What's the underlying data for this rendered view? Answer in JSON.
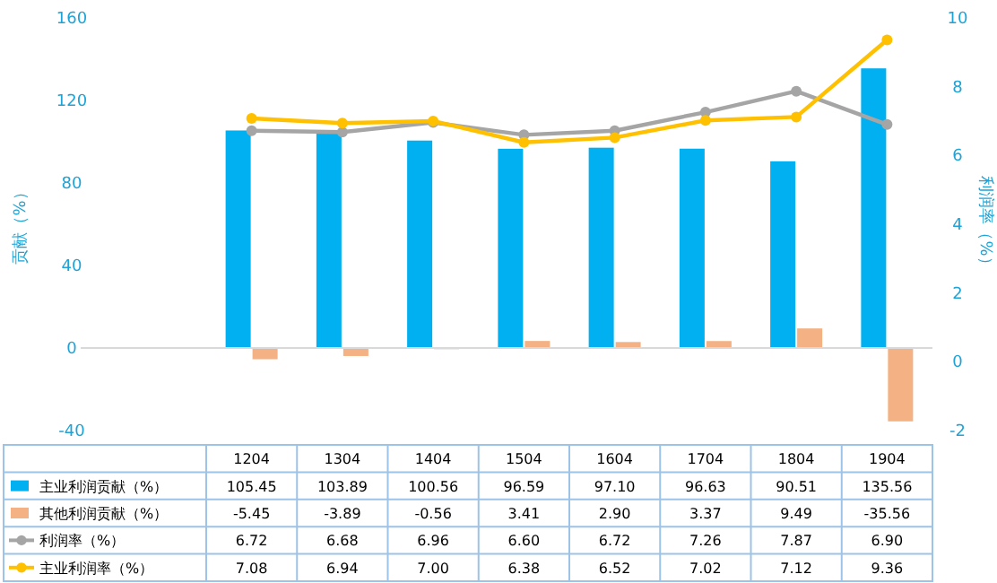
{
  "chart_data": {
    "type": "bar",
    "ylabel": "贡献（%）",
    "y2label": "利润率（%）",
    "categories": [
      "1204",
      "1304",
      "1404",
      "1504",
      "1604",
      "1704",
      "1804",
      "1904"
    ],
    "series": [
      {
        "name": "主业利润贡献（%）",
        "color": "#00b0f0",
        "values": [
          105.45,
          103.89,
          100.56,
          96.59,
          97.1,
          96.63,
          90.51,
          135.56
        ],
        "value_labels": [
          "105.45",
          "103.89",
          "100.56",
          "96.59",
          "97.10",
          "96.63",
          "90.51",
          "135.56"
        ]
      },
      {
        "name": "其他利润贡献（%）",
        "color": "#f4b183",
        "values": [
          -5.45,
          -3.89,
          -0.56,
          3.41,
          2.9,
          3.37,
          9.49,
          -35.56
        ],
        "value_labels": [
          "-5.45",
          "-3.89",
          "-0.56",
          "3.41",
          "2.90",
          "3.37",
          "9.49",
          "-35.56"
        ]
      },
      {
        "name": "利润率（%）",
        "color": "#a5a5a5",
        "type": "line",
        "axis": "y2",
        "values": [
          6.72,
          6.68,
          6.96,
          6.6,
          6.72,
          7.26,
          7.87,
          6.9
        ],
        "value_labels": [
          "6.72",
          "6.68",
          "6.96",
          "6.60",
          "6.72",
          "7.26",
          "7.87",
          "6.90"
        ]
      },
      {
        "name": "主业利润率（%）",
        "color": "#ffc000",
        "type": "line",
        "axis": "y2",
        "values": [
          7.08,
          6.94,
          7.0,
          6.38,
          6.52,
          7.02,
          7.12,
          9.36
        ],
        "value_labels": [
          "7.08",
          "6.94",
          "7.00",
          "6.38",
          "6.52",
          "7.02",
          "7.12",
          "9.36"
        ]
      }
    ],
    "ylim": [
      -40,
      160
    ],
    "yticks": [
      -40,
      0,
      40,
      80,
      120,
      160
    ],
    "y2lim": [
      -2,
      10
    ],
    "y2ticks": [
      -2,
      0,
      2,
      4,
      6,
      8,
      10
    ],
    "marker": "circle",
    "line_style": "solid",
    "legend": "bottom"
  }
}
